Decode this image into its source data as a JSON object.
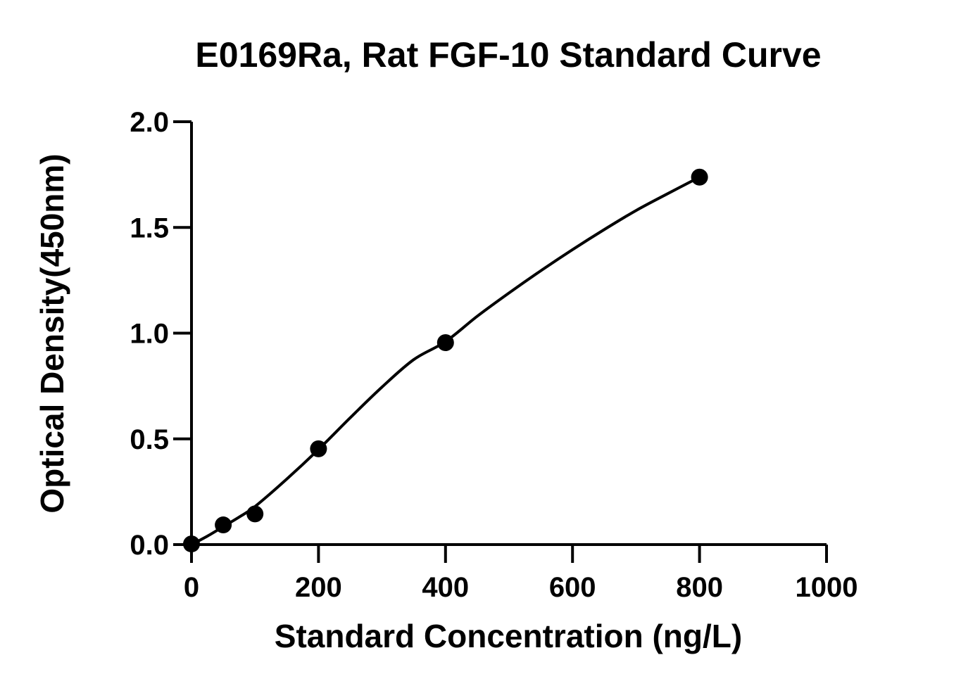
{
  "chart_data": {
    "type": "scatter",
    "title": "E0169Ra, Rat FGF-10 Standard Curve",
    "xlabel": "Standard Concentration (ng/L)",
    "ylabel": "Optical Density(450nm)",
    "xlim": [
      0,
      1000
    ],
    "ylim": [
      0,
      2.0
    ],
    "x_ticks": [
      0,
      200,
      400,
      600,
      800,
      1000
    ],
    "x_tick_labels": [
      "0",
      "200",
      "400",
      "600",
      "800",
      "1000"
    ],
    "y_ticks": [
      0,
      0.5,
      1.0,
      1.5,
      2.0
    ],
    "y_tick_labels": [
      "0.0",
      "0.5",
      "1.0",
      "1.5",
      "2.0"
    ],
    "grid": false,
    "series": [
      {
        "x": [
          0,
          50,
          100,
          200,
          400,
          800
        ],
        "y": [
          0.003,
          0.093,
          0.145,
          0.453,
          0.955,
          1.738
        ]
      }
    ],
    "fit_curve": {
      "type": "smooth",
      "x": [
        0,
        25,
        50,
        75,
        100,
        150,
        200,
        250,
        300,
        350,
        400,
        450,
        500,
        550,
        600,
        650,
        700,
        750,
        800
      ],
      "y": [
        0.0,
        0.04,
        0.085,
        0.13,
        0.18,
        0.31,
        0.45,
        0.6,
        0.745,
        0.875,
        0.96,
        1.08,
        1.19,
        1.295,
        1.395,
        1.49,
        1.58,
        1.66,
        1.738
      ]
    },
    "colors": {
      "line": "#000000",
      "marker": "#000000",
      "background": "#ffffff"
    }
  }
}
